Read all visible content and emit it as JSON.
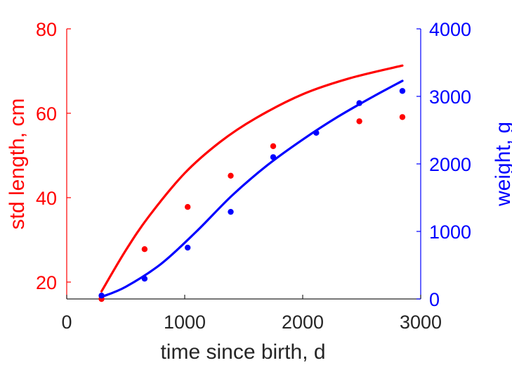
{
  "colors": {
    "left_axis": "#ff0000",
    "right_axis": "#0000ff",
    "x_axis": "#262626"
  },
  "chart_data": {
    "type": "scatter",
    "title": "",
    "xlabel": "time since birth, d",
    "ylabel": "std length, cm",
    "ylabel_right": "weight, g",
    "xlim": [
      0,
      3000
    ],
    "ylim": [
      16,
      80
    ],
    "ylim_right": [
      0,
      4000
    ],
    "xticks": [
      0,
      1000,
      2000,
      3000
    ],
    "yticks": [
      20,
      40,
      60,
      80
    ],
    "yticks_right": [
      0,
      1000,
      2000,
      3000,
      4000
    ],
    "grid": false,
    "legend": "none",
    "series": [
      {
        "axis": "left",
        "kind": "points",
        "color": "#ff0000",
        "x": [
          295,
          660,
          1025,
          1390,
          1750,
          2480,
          2845
        ],
        "y": [
          16.0,
          27.8,
          37.8,
          45.2,
          52.2,
          58.1,
          59.1
        ]
      },
      {
        "axis": "left",
        "kind": "line",
        "color": "#ff0000",
        "x": [
          295,
          500,
          700,
          1000,
          1300,
          1600,
          2000,
          2400,
          2845
        ],
        "y": [
          17.8,
          27.5,
          35.7,
          45.8,
          53.2,
          58.8,
          64.5,
          68.3,
          71.3
        ]
      },
      {
        "axis": "right",
        "kind": "points",
        "color": "#0000ff",
        "x": [
          295,
          660,
          1025,
          1390,
          1750,
          2115,
          2480,
          2845
        ],
        "y": [
          50,
          300,
          760,
          1290,
          2100,
          2460,
          2900,
          3080
        ]
      },
      {
        "axis": "right",
        "kind": "line",
        "color": "#0000ff",
        "x": [
          295,
          500,
          800,
          1100,
          1400,
          1700,
          2000,
          2300,
          2600,
          2845
        ],
        "y": [
          30,
          180,
          520,
          1000,
          1530,
          1980,
          2360,
          2700,
          3000,
          3230
        ]
      }
    ]
  }
}
